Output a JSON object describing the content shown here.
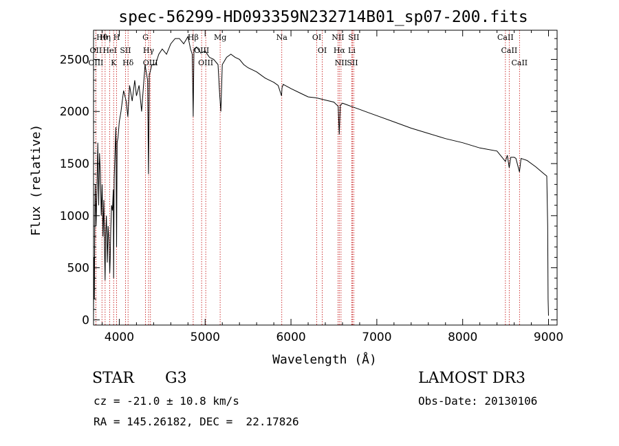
{
  "chart_data": {
    "type": "line",
    "title": "spec-56299-HD093359N232714B01_sp07-200.fits",
    "xlabel": "Wavelength (Å)",
    "ylabel": "Flux (relative)",
    "xlim": [
      3700,
      9100
    ],
    "ylim": [
      -50,
      2780
    ],
    "xticks": [
      4000,
      5000,
      6000,
      7000,
      8000,
      9000
    ],
    "yticks": [
      0,
      500,
      1000,
      1500,
      2000,
      2500
    ],
    "series": [
      {
        "name": "flux",
        "x": [
          3700,
          3705,
          3710,
          3715,
          3720,
          3730,
          3740,
          3750,
          3760,
          3770,
          3780,
          3790,
          3800,
          3810,
          3820,
          3830,
          3835,
          3840,
          3850,
          3860,
          3870,
          3880,
          3889,
          3895,
          3900,
          3910,
          3920,
          3930,
          3934,
          3940,
          3950,
          3960,
          3968,
          3975,
          3985,
          4000,
          4020,
          4050,
          4080,
          4100,
          4120,
          4150,
          4180,
          4200,
          4230,
          4260,
          4300,
          4330,
          4340,
          4350,
          4380,
          4420,
          4460,
          4500,
          4550,
          4600,
          4650,
          4700,
          4750,
          4800,
          4830,
          4850,
          4861,
          4870,
          4900,
          4950,
          5000,
          5050,
          5100,
          5150,
          5170,
          5183,
          5200,
          5250,
          5300,
          5350,
          5400,
          5450,
          5500,
          5550,
          5600,
          5650,
          5700,
          5750,
          5800,
          5850,
          5890,
          5896,
          5910,
          6000,
          6100,
          6200,
          6300,
          6400,
          6500,
          6550,
          6563,
          6575,
          6600,
          6700,
          6800,
          6900,
          7000,
          7200,
          7400,
          7600,
          7800,
          8000,
          8200,
          8400,
          8498,
          8520,
          8542,
          8560,
          8600,
          8620,
          8662,
          8680,
          8750,
          8850,
          8950,
          8980,
          8990,
          8995,
          9000
        ],
        "values": [
          30,
          600,
          200,
          1000,
          1300,
          900,
          1250,
          1700,
          1100,
          1600,
          1400,
          1000,
          1300,
          800,
          1150,
          600,
          380,
          800,
          1000,
          550,
          900,
          750,
          450,
          600,
          850,
          1100,
          1050,
          1250,
          400,
          1350,
          1600,
          1850,
          700,
          1700,
          1750,
          1900,
          2000,
          2200,
          2100,
          1950,
          2250,
          2100,
          2300,
          2150,
          2250,
          2000,
          2450,
          2300,
          1400,
          2350,
          2450,
          2450,
          2550,
          2600,
          2550,
          2650,
          2700,
          2700,
          2650,
          2720,
          2600,
          2550,
          1950,
          2600,
          2620,
          2560,
          2580,
          2520,
          2500,
          2450,
          2150,
          2000,
          2450,
          2520,
          2550,
          2520,
          2500,
          2450,
          2420,
          2400,
          2380,
          2350,
          2320,
          2300,
          2280,
          2250,
          2150,
          2230,
          2260,
          2220,
          2180,
          2140,
          2130,
          2110,
          2090,
          2050,
          1780,
          2060,
          2080,
          2050,
          2020,
          1990,
          1960,
          1900,
          1840,
          1790,
          1740,
          1700,
          1650,
          1620,
          1520,
          1580,
          1460,
          1560,
          1560,
          1550,
          1420,
          1550,
          1530,
          1470,
          1400,
          1380,
          900,
          200,
          40
        ]
      }
    ],
    "lines": [
      {
        "name": "Hθ",
        "x": 3798
      },
      {
        "name": "OII",
        "x": 3727
      },
      {
        "name": "OIII",
        "x": 3727
      },
      {
        "name": "Hη",
        "x": 3835
      },
      {
        "name": "HeI",
        "x": 3889
      },
      {
        "name": "K",
        "x": 3934
      },
      {
        "name": "H",
        "x": 3969
      },
      {
        "name": "SII",
        "x": 4072
      },
      {
        "name": "Hδ",
        "x": 4102
      },
      {
        "name": "G",
        "x": 4305
      },
      {
        "name": "Hγ",
        "x": 4341
      },
      {
        "name": "OIII",
        "x": 4363
      },
      {
        "name": "Hβ",
        "x": 4861
      },
      {
        "name": "OIII",
        "x": 4959
      },
      {
        "name": "OIII",
        "x": 5007
      },
      {
        "name": "Mg",
        "x": 5175
      },
      {
        "name": "Na",
        "x": 5893
      },
      {
        "name": "OI",
        "x": 6300
      },
      {
        "name": "OI",
        "x": 6364
      },
      {
        "name": "NII",
        "x": 6548
      },
      {
        "name": "Hα",
        "x": 6563
      },
      {
        "name": "NII",
        "x": 6583
      },
      {
        "name": "Li",
        "x": 6708
      },
      {
        "name": "SII",
        "x": 6716
      },
      {
        "name": "SII",
        "x": 6731
      },
      {
        "name": "CaII",
        "x": 8498
      },
      {
        "name": "CaII",
        "x": 8542
      },
      {
        "name": "CaII",
        "x": 8662
      }
    ]
  },
  "info": {
    "object_class": "STAR",
    "subclass": "G3",
    "survey": "LAMOST DR3",
    "redshift": "cz = -21.0 ± 10.8 km/s",
    "obs_date": "Obs-Date: 20130106",
    "coords": "RA = 145.26182, DEC =  22.17826"
  },
  "colors": {
    "line_marker": "#c00000",
    "spectrum": "#000000",
    "axes": "#000000"
  }
}
